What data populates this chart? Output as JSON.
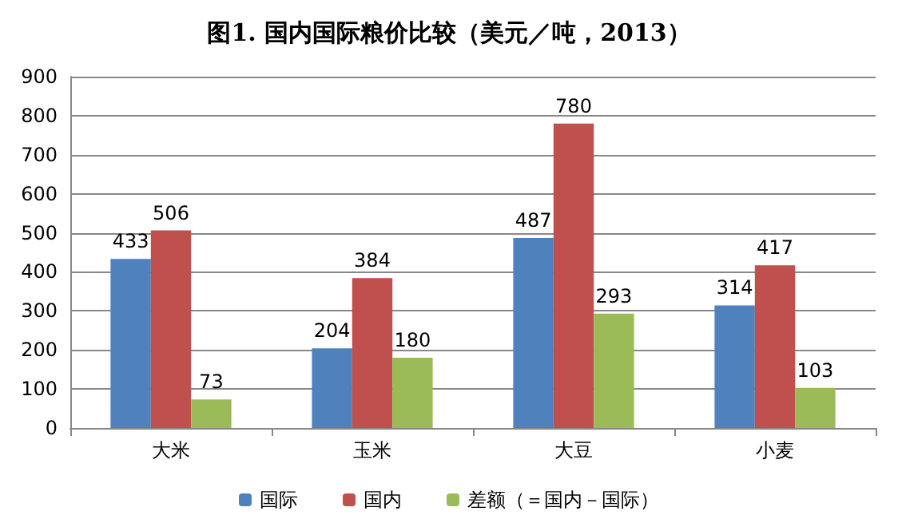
{
  "chart_data": {
    "type": "bar",
    "title": "图1. 国内国际粮价比较（美元／吨，2013）",
    "categories": [
      "大米",
      "玉米",
      "大豆",
      "小麦"
    ],
    "series": [
      {
        "name": "国际",
        "color": "#4f81bd",
        "values": [
          433,
          204,
          487,
          314
        ]
      },
      {
        "name": "国内",
        "color": "#c0504d",
        "values": [
          506,
          384,
          780,
          417
        ]
      },
      {
        "name": "差额（＝国内－国际）",
        "color": "#9bbb59",
        "values": [
          73,
          180,
          293,
          103
        ]
      }
    ],
    "ylim": [
      0,
      900
    ],
    "yticks": [
      0,
      100,
      200,
      300,
      400,
      500,
      600,
      700,
      800,
      900
    ],
    "grid": "y",
    "legend": "bottom",
    "data_labels": true
  }
}
